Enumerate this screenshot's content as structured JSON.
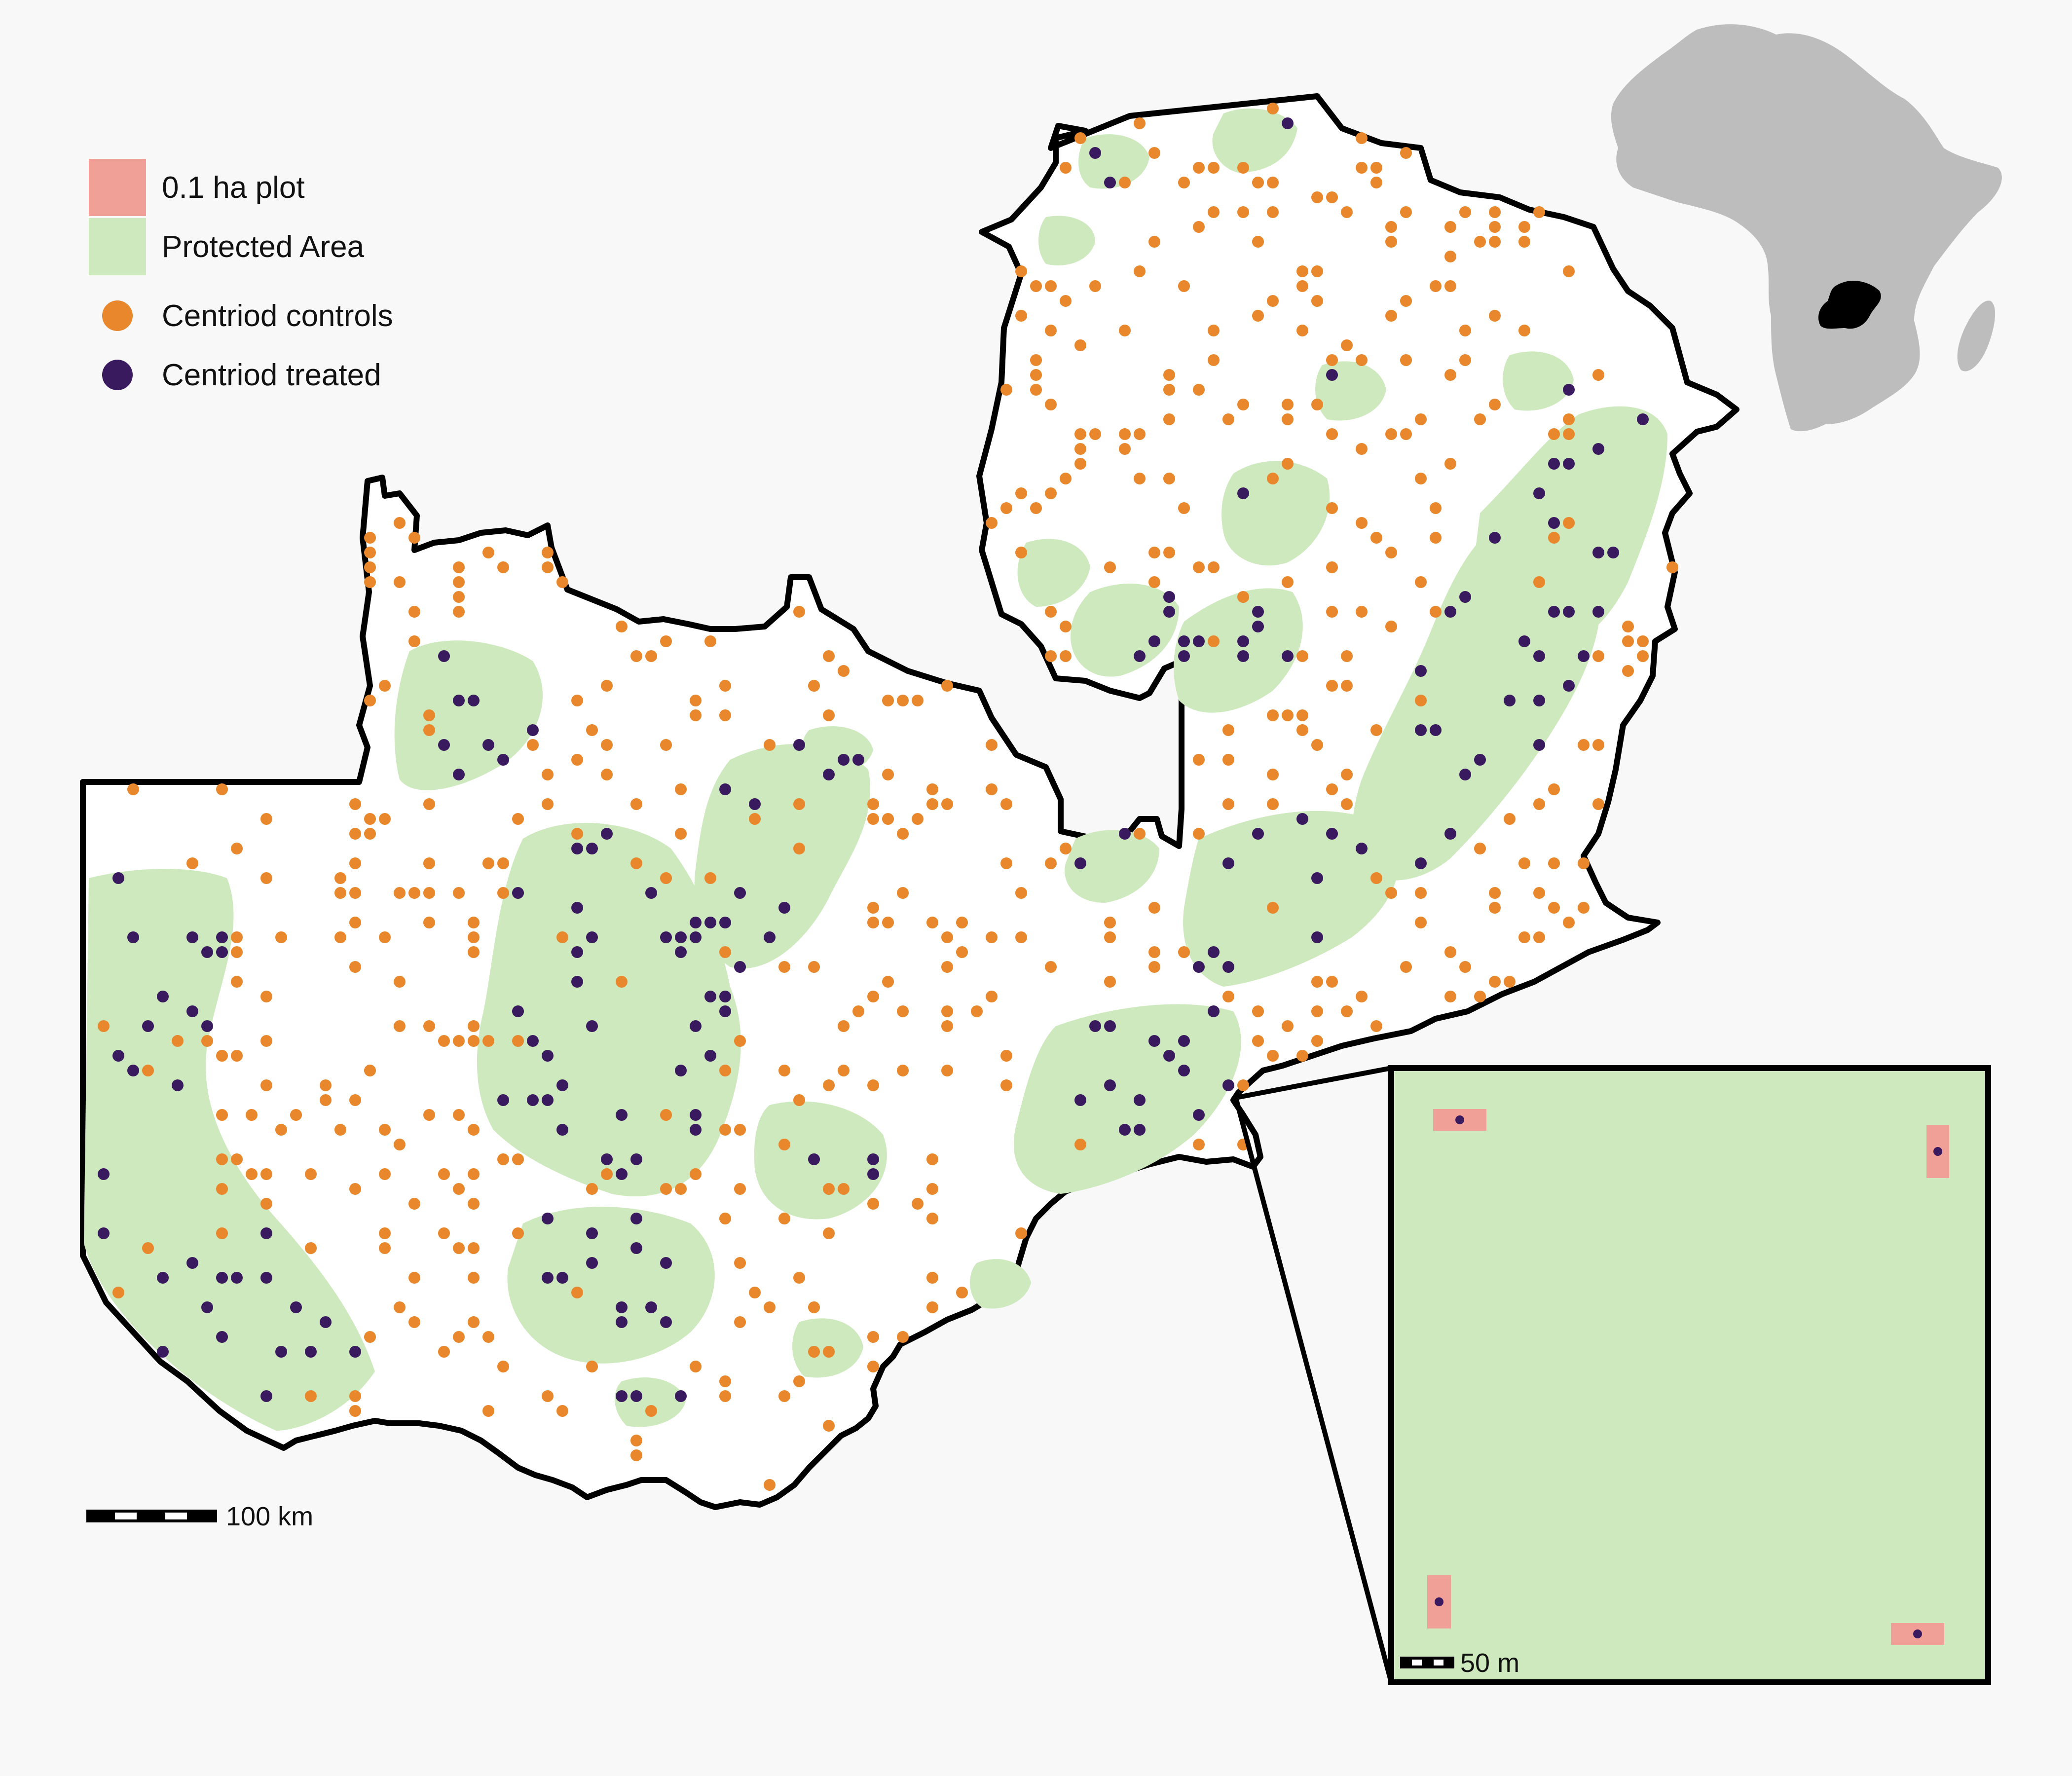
{
  "legend": {
    "items": [
      {
        "label": "0.1 ha plot",
        "kind": "swatch",
        "color": "#f0a096"
      },
      {
        "label": "Protected Area",
        "kind": "swatch",
        "color": "#cde9bd"
      },
      {
        "label": "Centriod controls",
        "kind": "dot",
        "color": "#e8872b"
      },
      {
        "label": "Centriod treated",
        "kind": "dot",
        "color": "#3a1a5e"
      }
    ]
  },
  "scale_bars": {
    "main_label": "100 km",
    "inset_label": "50 m"
  },
  "colors": {
    "background": "#f7f8f7",
    "land": "#ffffff",
    "protected_area": "#cde9bd",
    "plot": "#f0a096",
    "control": "#e8872b",
    "treated": "#3a1a5e",
    "africa": "#bdbdbd",
    "zambia_highlight": "#000000",
    "border": "#000000"
  },
  "inset": {
    "plots_count": 4
  }
}
